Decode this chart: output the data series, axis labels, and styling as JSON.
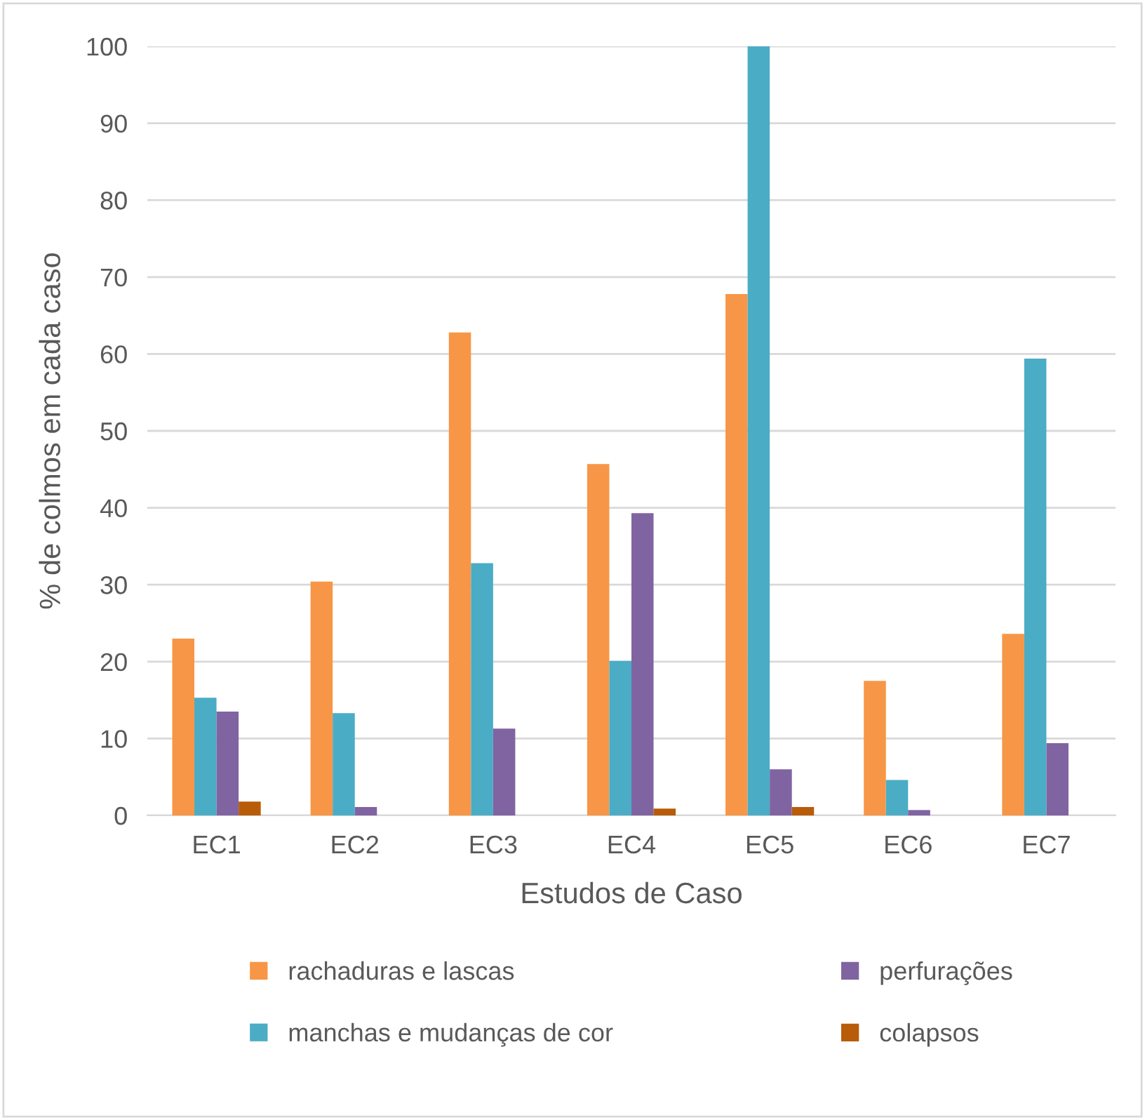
{
  "chart_data": {
    "type": "bar",
    "xlabel": "Estudos de Caso",
    "ylabel": "% de colmos em cada caso",
    "categories": [
      "EC1",
      "EC2",
      "EC3",
      "EC4",
      "EC5",
      "EC6",
      "EC7"
    ],
    "series": [
      {
        "name": "rachaduras e lascas",
        "color": "#f79646",
        "values": [
          23,
          30.4,
          62.8,
          45.7,
          67.8,
          17.5,
          23.6
        ]
      },
      {
        "name": "manchas e mudanças de cor",
        "color": "#4bacc6",
        "values": [
          15.3,
          13.3,
          32.8,
          20.1,
          100,
          4.6,
          59.4
        ]
      },
      {
        "name": "perfurações",
        "color": "#8064a2",
        "values": [
          13.5,
          1.1,
          11.3,
          39.3,
          6.0,
          0.7,
          9.4
        ]
      },
      {
        "name": "colapsos",
        "color": "#b85c0a",
        "values": [
          1.8,
          0,
          0,
          0.9,
          1.1,
          0,
          0
        ]
      }
    ],
    "ylim": [
      0,
      100
    ],
    "yticks": [
      0,
      10,
      20,
      30,
      40,
      50,
      60,
      70,
      80,
      90,
      100
    ],
    "grid": "y",
    "legend": "bottom"
  }
}
